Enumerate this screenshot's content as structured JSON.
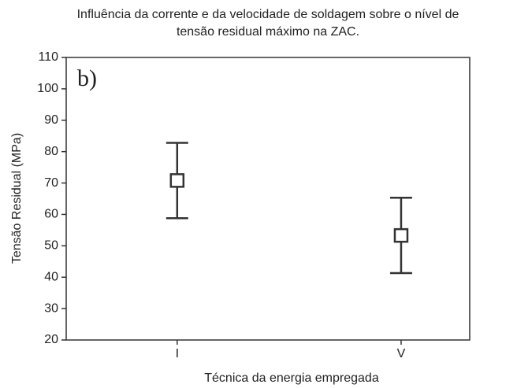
{
  "chart_data": {
    "type": "errorbar",
    "title": [
      "Influência da corrente e da velocidade de soldagem sobre o nível de",
      "tensão residual máximo na ZAC."
    ],
    "annotation": "b)",
    "x_label": "Técnica da energia empregada",
    "y_label": "Tensão Residual (MPa)",
    "categories": [
      "I",
      "V"
    ],
    "values": [
      70.8,
      53.3
    ],
    "errors": [
      12,
      12
    ],
    "color": "#333333",
    "ylim": [
      20,
      110
    ],
    "yticks": [
      20,
      30,
      40,
      50,
      60,
      70,
      80,
      90,
      100,
      110
    ]
  }
}
